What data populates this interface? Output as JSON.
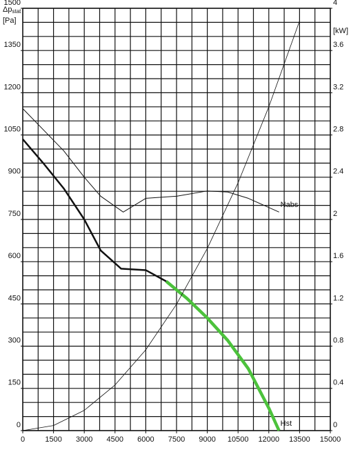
{
  "chart_data": {
    "type": "line",
    "ylabel": {
      "symbol": "Δp",
      "subscript": "stat",
      "unit": "[Pa]"
    },
    "y2label": "[kW]",
    "xlim": [
      0,
      15000
    ],
    "xticks": [
      0,
      1500,
      3000,
      4500,
      6000,
      7500,
      9000,
      10500,
      12000,
      13500,
      15000
    ],
    "xgrid": [
      0,
      750,
      1500,
      2250,
      3000,
      3750,
      4500,
      5250,
      6000,
      6750,
      7500,
      8250,
      9000,
      9750,
      10500,
      11250,
      12000,
      12750,
      13500,
      14250,
      15000
    ],
    "ylim": [
      0,
      1500
    ],
    "yticks": [
      0,
      150,
      300,
      450,
      600,
      750,
      900,
      1050,
      1200,
      1350,
      1500
    ],
    "ygrid": [
      0,
      50,
      100,
      150,
      200,
      250,
      300,
      350,
      400,
      450,
      500,
      550,
      600,
      650,
      700,
      750,
      800,
      850,
      900,
      950,
      1000,
      1050,
      1100,
      1150,
      1200,
      1250,
      1300,
      1350,
      1400,
      1450,
      1500
    ],
    "y2lim": [
      0,
      4
    ],
    "y2ticks": [
      0,
      0.4,
      0.8,
      1.2,
      1.6,
      2,
      2.4,
      2.8,
      3.2,
      3.6,
      4
    ],
    "grid": true,
    "series": [
      {
        "name": "Hst",
        "color": "#111111",
        "highlight_color": "#4cc23c",
        "highlight_from_x": 7000,
        "width": 2.5,
        "highlight_width": 4.5,
        "x": [
          0,
          1000,
          2000,
          3000,
          3800,
          4800,
          6000,
          7000,
          8000,
          9000,
          10000,
          11000,
          12000,
          12500
        ],
        "values": [
          1035,
          950,
          860,
          750,
          640,
          575,
          570,
          530,
          470,
          400,
          320,
          220,
          80,
          0
        ]
      },
      {
        "name": "Nabs",
        "color": "#111111",
        "width": 1,
        "axis": "y2",
        "x": [
          0,
          1000,
          2000,
          3000,
          3800,
          4900,
          6000,
          7500,
          9000,
          10000,
          11000,
          12500
        ],
        "values": [
          3.05,
          2.85,
          2.65,
          2.4,
          2.22,
          2.07,
          2.2,
          2.22,
          2.27,
          2.26,
          2.2,
          2.07
        ]
      },
      {
        "color": "#111111",
        "width": 0.8,
        "x": [
          0,
          1500,
          3000,
          4500,
          6000,
          7500,
          9000,
          10500,
          12000,
          13500
        ],
        "values": [
          0,
          18,
          72,
          162,
          287,
          449,
          647,
          880,
          1150,
          1455
        ]
      }
    ]
  }
}
